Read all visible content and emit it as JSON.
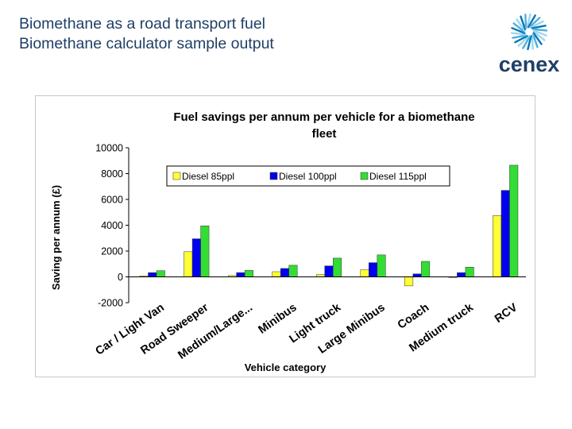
{
  "slide": {
    "title_line1": "Biomethane as a road transport fuel",
    "title_line2": "Biomethane calculator sample output"
  },
  "logo": {
    "text": "cenex",
    "icon": "cenex-swirl-icon"
  },
  "colors": {
    "title": "#1f3f66",
    "series": [
      "#ffff33",
      "#0000ee",
      "#33dd33"
    ],
    "logo_blue": "#0077b6"
  },
  "chart_data": {
    "type": "bar",
    "title_line1": "Fuel savings per annum per vehicle for a biomethane",
    "title_line2": "fleet",
    "xlabel": "Vehicle category",
    "ylabel": "Saving per annum (£)",
    "ylim": [
      -2000,
      10000
    ],
    "yticks": [
      "10000",
      "8000",
      "6000",
      "4000",
      "2000",
      "0",
      "-2000"
    ],
    "grid": false,
    "legend_position": "top",
    "categories": [
      "Car / Light Van",
      "Road Sweeper",
      "Medium/Large...",
      "Minibus",
      "Light truck",
      "Large Minibus",
      "Coach",
      "Medium truck",
      "RCV"
    ],
    "series": [
      {
        "name": "Diesel 85ppl",
        "values": [
          80,
          1950,
          100,
          400,
          180,
          550,
          -700,
          -50,
          4750
        ]
      },
      {
        "name": "Diesel 100ppl",
        "values": [
          330,
          2950,
          330,
          650,
          850,
          1100,
          230,
          330,
          6700
        ]
      },
      {
        "name": "Diesel 115ppl",
        "values": [
          480,
          3950,
          500,
          900,
          1450,
          1700,
          1200,
          750,
          8650
        ]
      }
    ]
  }
}
